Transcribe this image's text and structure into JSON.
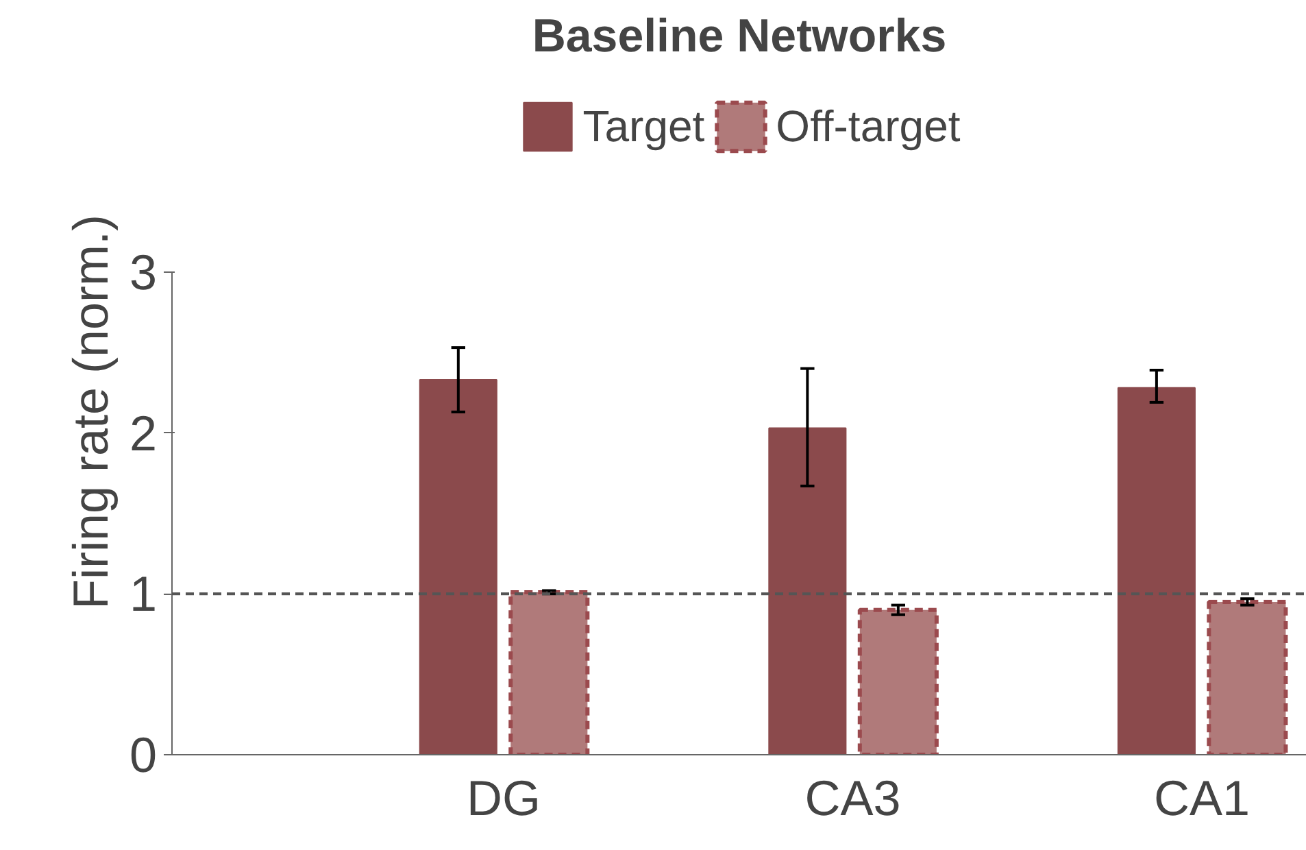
{
  "chart_data": {
    "type": "bar",
    "title": "Baseline Networks",
    "ylabel": "Firing rate (norm.)",
    "categories": [
      "DG",
      "CA3",
      "CA1"
    ],
    "series": [
      {
        "name": "Target",
        "color": "#8b4a4c",
        "values": [
          2.33,
          2.03,
          2.28
        ],
        "errors": [
          [
            2.13,
            2.53
          ],
          [
            1.67,
            2.4
          ],
          [
            2.19,
            2.39
          ]
        ]
      },
      {
        "name": "Off-target",
        "color": "#b07a7a",
        "line_style": "dashed",
        "values": [
          1.01,
          0.9,
          0.95
        ],
        "errors": [
          0.01,
          0.03,
          0.02
        ]
      }
    ],
    "ylim": [
      0,
      3
    ],
    "yticks": [
      0,
      1,
      2,
      3
    ],
    "grid": false,
    "legend": "top",
    "ref_lines": [
      {
        "axis": "y",
        "value": 1,
        "color": "#555555",
        "line_style": "dashed"
      }
    ]
  }
}
